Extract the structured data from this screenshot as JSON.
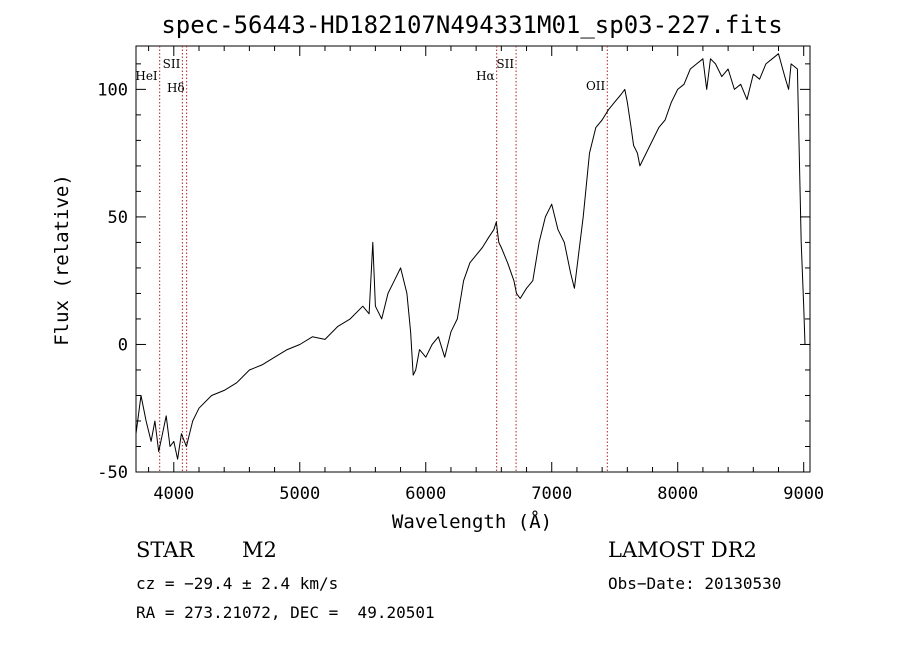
{
  "chart_data": {
    "type": "line",
    "title": "spec-56443-HD182107N494331M01_sp03-227.fits",
    "xlabel": "Wavelength (Å)",
    "ylabel": "Flux (relative)",
    "xlim": [
      3700,
      9050
    ],
    "ylim": [
      -50,
      117
    ],
    "x_ticks": [
      4000,
      5000,
      6000,
      7000,
      8000,
      9000
    ],
    "y_ticks": [
      -50,
      0,
      50,
      100
    ],
    "grid": false,
    "series": [
      {
        "x": [
          3700,
          3740,
          3780,
          3820,
          3850,
          3880,
          3910,
          3940,
          3970,
          4000,
          4030,
          4060,
          4100,
          4150,
          4200,
          4300,
          4400,
          4500,
          4600,
          4700,
          4800,
          4900,
          5000,
          5100,
          5200,
          5300,
          5400,
          5500,
          5550,
          5580,
          5600,
          5650,
          5700,
          5750,
          5800,
          5850,
          5880,
          5900,
          5920,
          5950,
          6000,
          6050,
          6100,
          6150,
          6200,
          6250,
          6300,
          6350,
          6400,
          6450,
          6500,
          6540,
          6560,
          6580,
          6600,
          6650,
          6700,
          6720,
          6750,
          6800,
          6850,
          6900,
          6950,
          7000,
          7050,
          7100,
          7150,
          7180,
          7200,
          7250,
          7300,
          7350,
          7400,
          7450,
          7500,
          7550,
          7580,
          7600,
          7630,
          7650,
          7680,
          7700,
          7750,
          7800,
          7850,
          7900,
          7950,
          8000,
          8050,
          8100,
          8150,
          8200,
          8230,
          8260,
          8300,
          8350,
          8400,
          8450,
          8500,
          8550,
          8600,
          8650,
          8700,
          8750,
          8800,
          8850,
          8880,
          8900,
          8950,
          8980,
          9000,
          9010
        ],
        "y": [
          -35,
          -20,
          -30,
          -38,
          -30,
          -42,
          -35,
          -28,
          -40,
          -38,
          -45,
          -35,
          -40,
          -30,
          -25,
          -20,
          -18,
          -15,
          -10,
          -8,
          -5,
          -2,
          0,
          3,
          2,
          7,
          10,
          15,
          12,
          40,
          15,
          10,
          20,
          25,
          30,
          20,
          5,
          -12,
          -10,
          -2,
          -5,
          0,
          3,
          -5,
          5,
          10,
          25,
          32,
          35,
          38,
          42,
          45,
          48,
          40,
          38,
          32,
          25,
          20,
          18,
          22,
          25,
          40,
          50,
          55,
          45,
          40,
          28,
          22,
          30,
          50,
          75,
          85,
          88,
          92,
          95,
          98,
          100,
          95,
          85,
          78,
          75,
          70,
          75,
          80,
          85,
          88,
          95,
          100,
          102,
          108,
          110,
          112,
          100,
          112,
          110,
          105,
          108,
          100,
          102,
          96,
          106,
          104,
          110,
          112,
          114,
          105,
          100,
          110,
          108,
          40,
          15,
          0
        ]
      }
    ],
    "annotations": [
      {
        "label": "HeI",
        "x": 3888
      },
      {
        "label": "SII",
        "x": 4068
      },
      {
        "label": "Hδ",
        "x": 4102
      },
      {
        "label": "Hα",
        "x": 6563
      },
      {
        "label": "SII",
        "x": 6717
      },
      {
        "label": "OII",
        "x": 7441
      }
    ]
  },
  "info": {
    "object_class": "STAR",
    "subclass": "M2",
    "survey": "LAMOST DR2",
    "redshift": "cz = −29.4 ± 2.4 km/s",
    "obs_date": "Obs−Date: 20130530",
    "coords": "RA = 273.21072, DEC =  49.20501"
  },
  "colors": {
    "spectrum": "#000000",
    "line_marker": "#b22222",
    "background": "#ffffff"
  }
}
